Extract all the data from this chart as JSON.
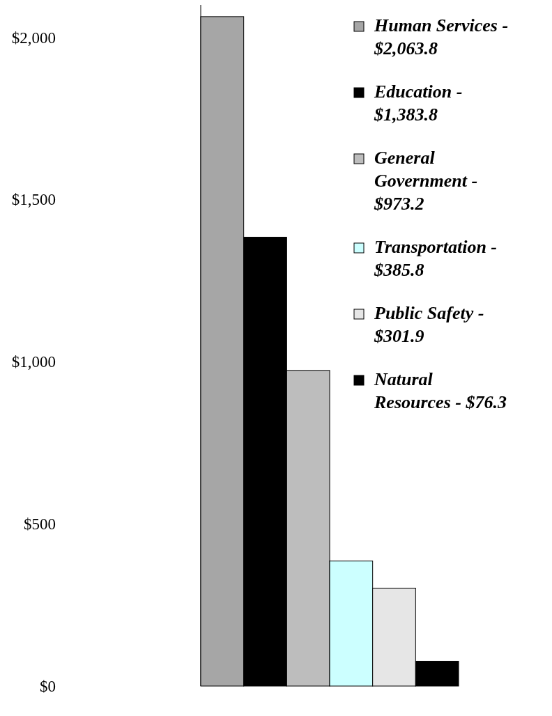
{
  "chart_data": {
    "type": "bar",
    "categories": [
      null
    ],
    "series": [
      {
        "name": "Human Services - $2,063.8",
        "color": "#a6a6a6",
        "values": [
          2063.8
        ]
      },
      {
        "name": "Education - $1,383.8",
        "color": "#000000",
        "values": [
          1383.8
        ]
      },
      {
        "name": "General Government - $973.2",
        "color": "#bdbdbd",
        "values": [
          973.2
        ]
      },
      {
        "name": "Transportation - $385.8",
        "color": "#ccffff",
        "values": [
          385.8
        ]
      },
      {
        "name": "Public Safety - $301.9",
        "color": "#e6e6e6",
        "values": [
          301.9
        ]
      },
      {
        "name": "Natural Resources - $76.3",
        "color": "#000000",
        "values": [
          76.3
        ]
      }
    ],
    "ylim": [
      0,
      2100
    ],
    "yticks": [
      {
        "value": 0,
        "label": "$0"
      },
      {
        "value": 500,
        "label": "$500"
      },
      {
        "value": 1000,
        "label": "$1,000"
      },
      {
        "value": 1500,
        "label": "$1,500"
      },
      {
        "value": 2000,
        "label": "$2,000"
      }
    ],
    "grid": false,
    "legend": "top right"
  }
}
